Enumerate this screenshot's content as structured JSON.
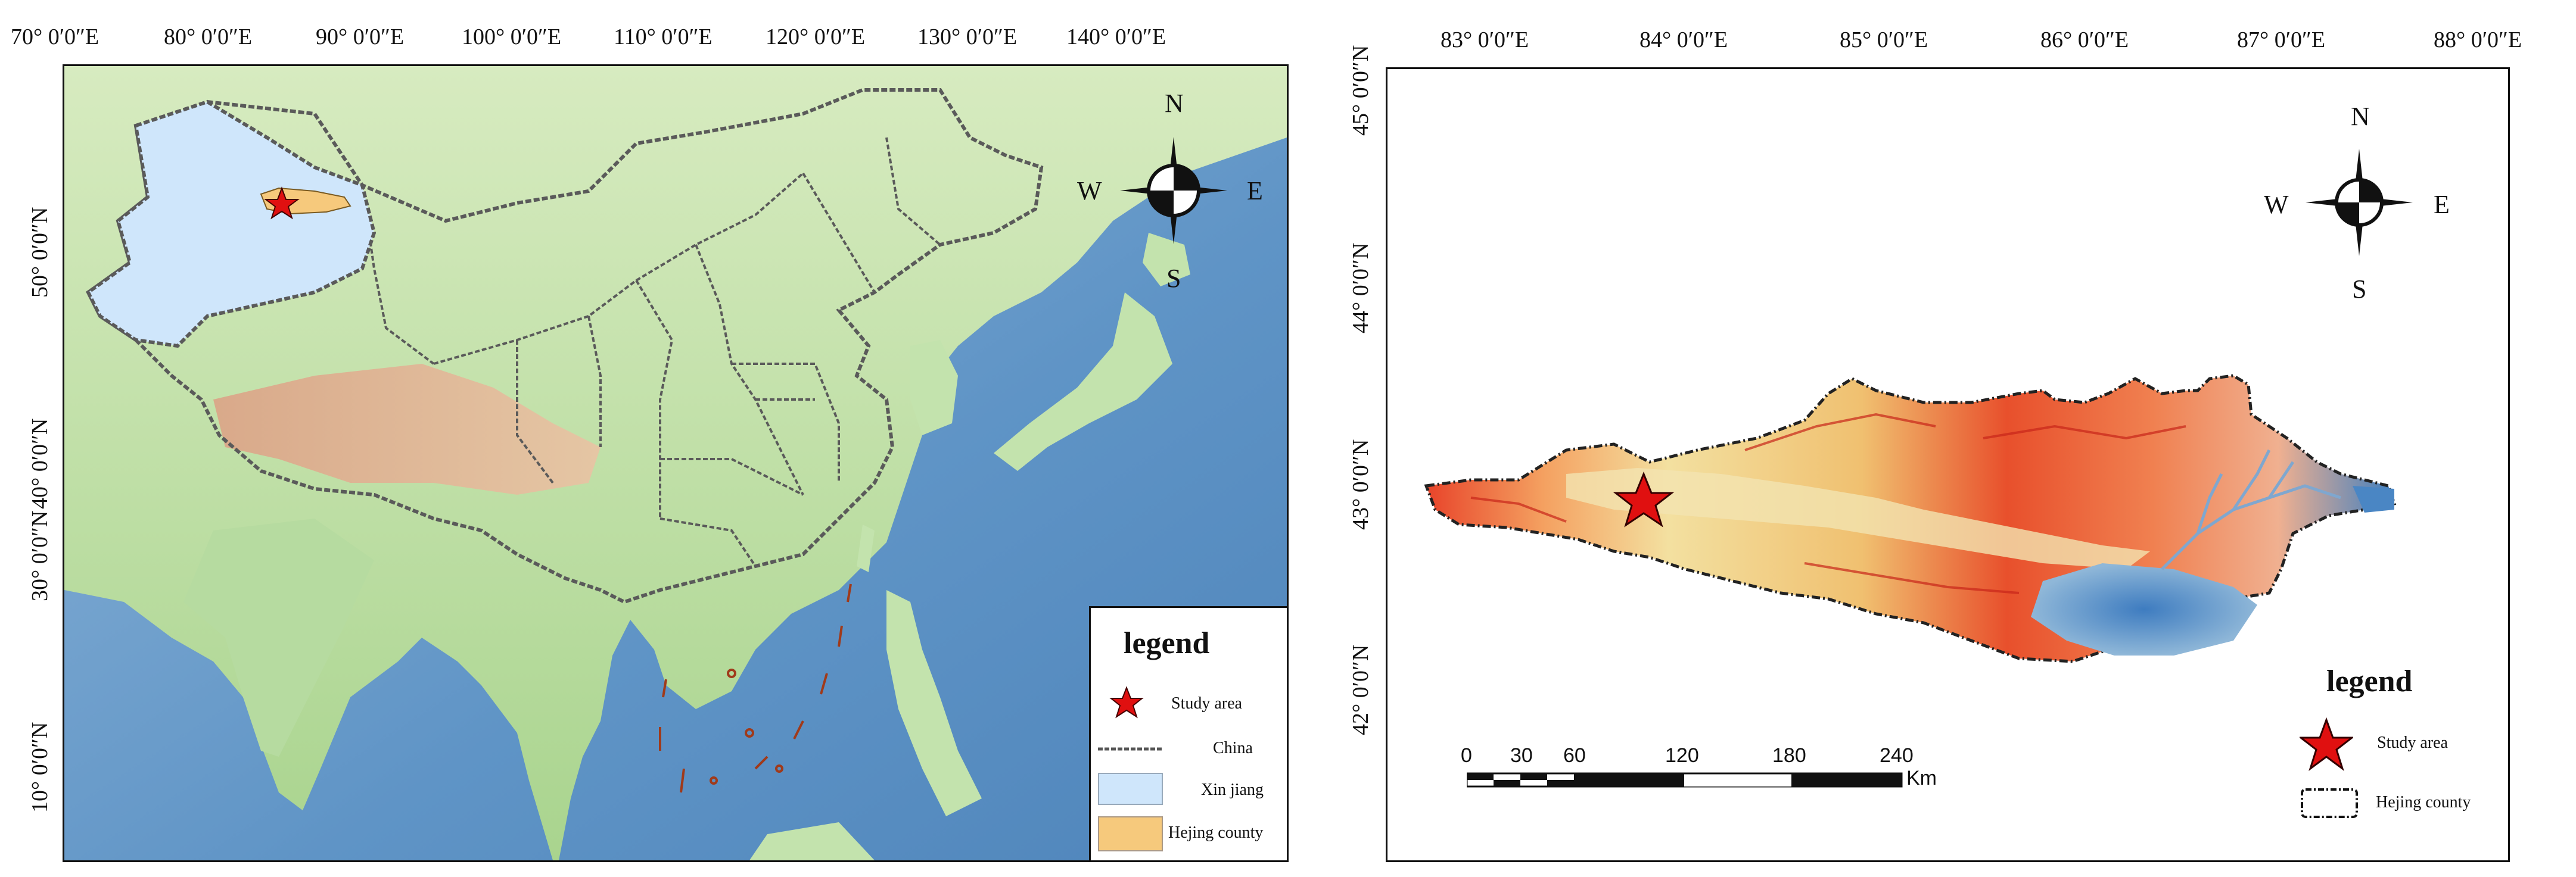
{
  "left_map": {
    "top_ticks": [
      "70°  0′0″E",
      "80°  0′0″E",
      "90°  0′0″E",
      "100°  0′0″E",
      "110°  0′0″E",
      "120°  0′0″E",
      "130°  0′0″E",
      "140°  0′0″E"
    ],
    "side_ticks": [
      "50°  0′0″N",
      "40°  0′0″N",
      "30°  0′0″N",
      "10°  0′0″N"
    ],
    "compass": {
      "n": "N",
      "s": "S",
      "w": "W",
      "e": "E"
    },
    "legend": {
      "title": "legend",
      "items": [
        "Study area",
        "China",
        "Xin jiang",
        "Hejing county"
      ]
    },
    "colors": {
      "xinjiang": "#cfe6fb",
      "hejing": "#f6c97c",
      "study_star": "#e01010",
      "boundary": "#555555"
    }
  },
  "right_map": {
    "top_ticks": [
      "83°  0′0″E",
      "84°  0′0″E",
      "85°  0′0″E",
      "86°  0′0″E",
      "87°  0′0″E",
      "88°  0′0″E"
    ],
    "side_ticks": [
      "45°  0′0″N",
      "44°  0′0″N",
      "43°  0′0″N",
      "42°  0′0″N"
    ],
    "compass": {
      "n": "N",
      "s": "S",
      "w": "W",
      "e": "E"
    },
    "scale_bar": {
      "labels": [
        "0",
        "30",
        "60",
        "120",
        "180",
        "240"
      ],
      "unit": "Km"
    },
    "legend": {
      "title": "legend",
      "items": [
        "Study area",
        "Hejing county"
      ]
    }
  }
}
